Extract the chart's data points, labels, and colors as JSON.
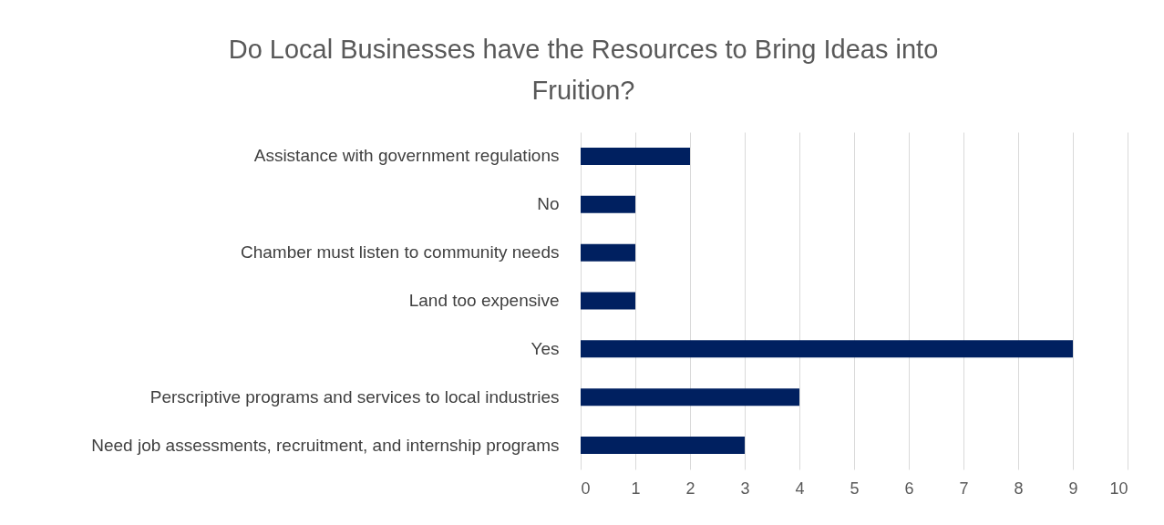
{
  "chart_data": {
    "type": "bar",
    "orientation": "horizontal",
    "title": "Do Local Businesses have the Resources to Bring Ideas into Fruition?",
    "categories": [
      "Assistance with government regulations",
      "No",
      "Chamber must listen to community needs",
      "Land too expensive",
      "Yes",
      "Perscriptive programs and services to local industries",
      "Need job assessments, recruitment, and internship programs"
    ],
    "values": [
      2,
      1,
      1,
      1,
      9,
      4,
      3
    ],
    "color": "#002060",
    "xlim": [
      0,
      10
    ],
    "xticks": [
      0,
      1,
      2,
      3,
      4,
      5,
      6,
      7,
      8,
      9,
      10
    ],
    "grid": "x"
  }
}
